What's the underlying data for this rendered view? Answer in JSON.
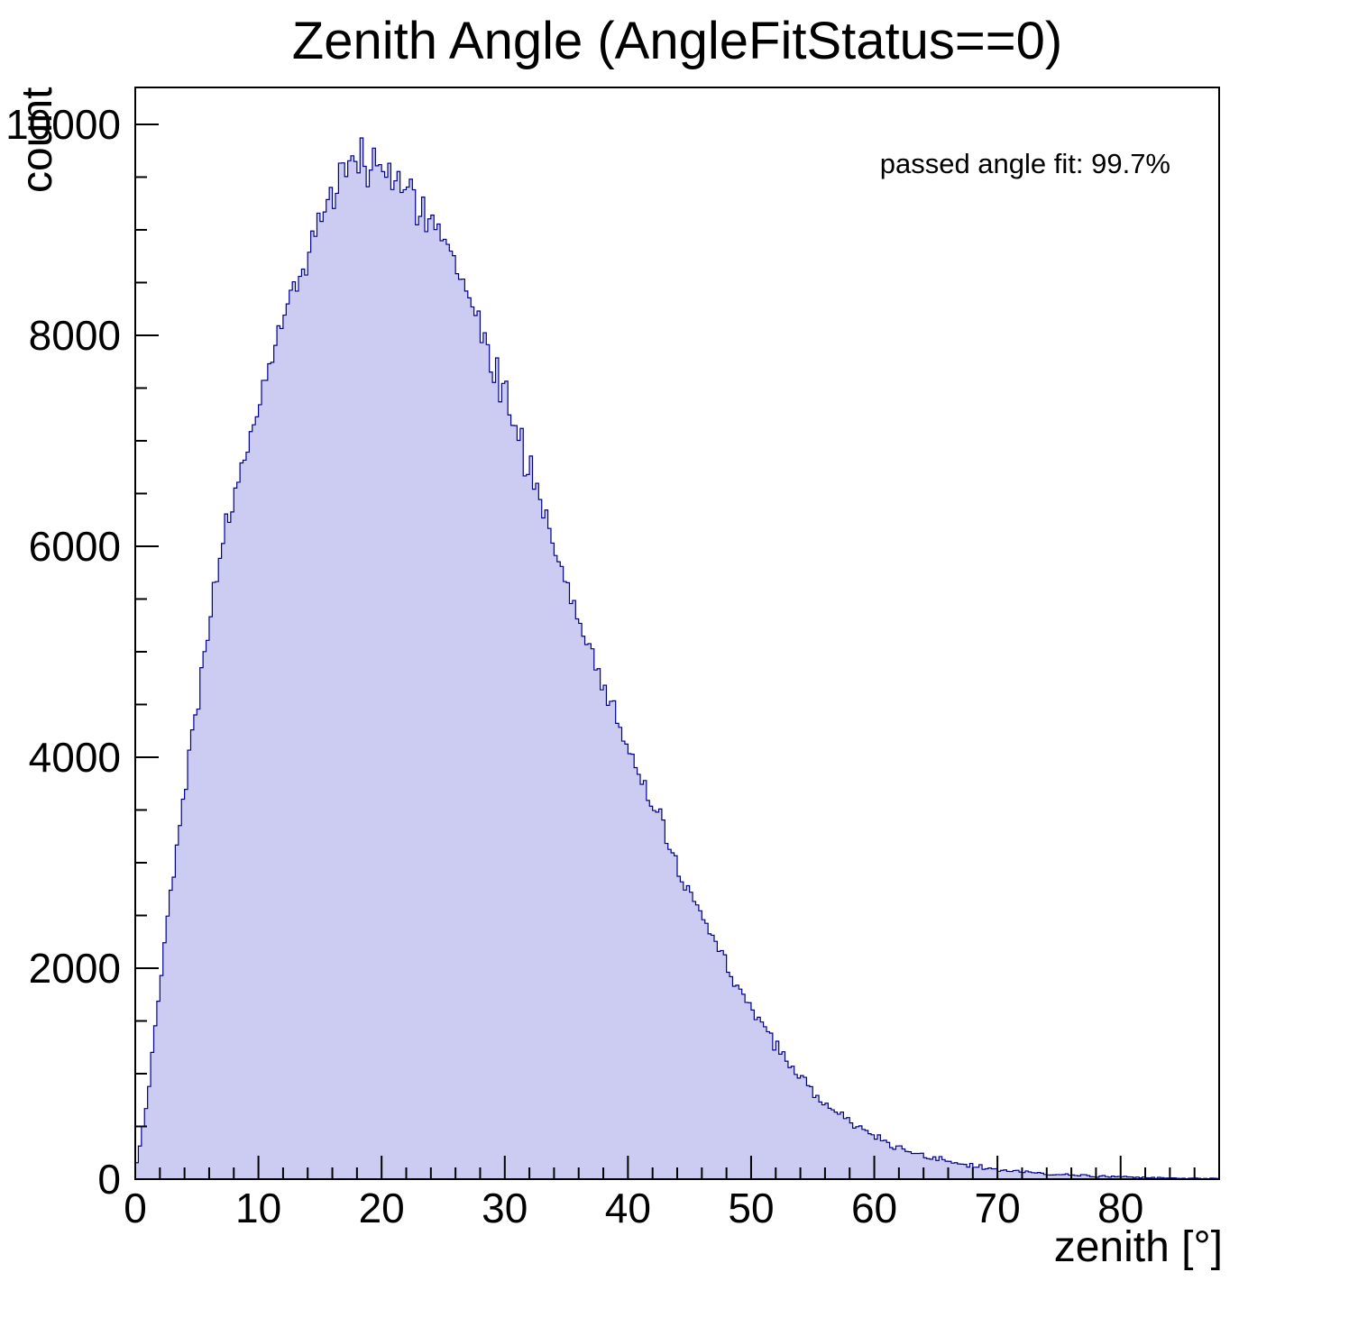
{
  "page": {
    "background": "#ffffff"
  },
  "chart_data": {
    "type": "histogram",
    "title": "Zenith Angle (AngleFitStatus==0)",
    "xlabel": "zenith [°]",
    "ylabel": "count",
    "annotation": "passed angle fit: 99.7%",
    "xlim": [
      0,
      88
    ],
    "ylim": [
      0,
      10350
    ],
    "x_major_ticks": [
      0,
      10,
      20,
      30,
      40,
      50,
      60,
      70,
      80
    ],
    "x_minor_step": 2,
    "y_major_ticks": [
      0,
      2000,
      4000,
      6000,
      8000,
      10000
    ],
    "y_minor_step": 500,
    "bin_start": 0,
    "bin_width": 1,
    "values": [
      60,
      750,
      1900,
      2850,
      3700,
      4500,
      5250,
      5950,
      6450,
      6900,
      7300,
      7800,
      8200,
      8500,
      8800,
      9050,
      9300,
      9500,
      9700,
      9600,
      9650,
      9550,
      9400,
      9250,
      9050,
      8850,
      8600,
      8350,
      8050,
      7750,
      7450,
      7100,
      6750,
      6400,
      6000,
      5650,
      5300,
      5000,
      4700,
      4400,
      4100,
      3800,
      3500,
      3250,
      2950,
      2700,
      2500,
      2250,
      2050,
      1820,
      1620,
      1430,
      1260,
      1100,
      960,
      840,
      730,
      630,
      545,
      470,
      405,
      350,
      300,
      260,
      225,
      195,
      165,
      145,
      125,
      105,
      90,
      78,
      68,
      58,
      50,
      44,
      38,
      33,
      28,
      24,
      21,
      18,
      15,
      13,
      11,
      9,
      8,
      6,
      5
    ],
    "fill_color": "#ccccf2",
    "line_color": "#00008c",
    "axis_color": "#000000",
    "tick_label_color": "#000000"
  }
}
